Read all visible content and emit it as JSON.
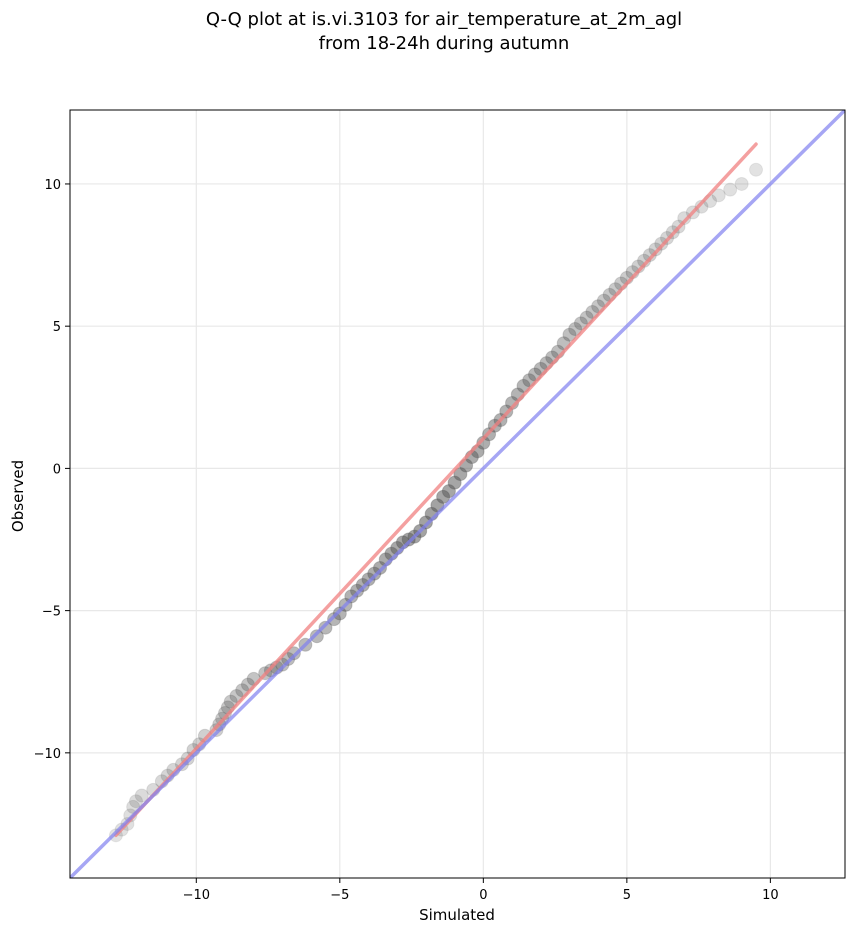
{
  "chart_data": {
    "type": "scatter",
    "title_lines": [
      "Q-Q plot at is.vi.3103 for air_temperature_at_2m_agl",
      "from 18-24h during autumn"
    ],
    "xlabel": "Simulated",
    "ylabel": "Observed",
    "xlim": [
      -14.4,
      12.6
    ],
    "ylim": [
      -14.4,
      12.6
    ],
    "xticks": [
      -10,
      -5,
      0,
      5,
      10
    ],
    "yticks": [
      -10,
      -5,
      0,
      5,
      10
    ],
    "xtick_labels": [
      "−10",
      "−5",
      "0",
      "5",
      "10"
    ],
    "ytick_labels": [
      "−10",
      "−5",
      "0",
      "5",
      "10"
    ],
    "grid": true,
    "colors": {
      "points": "#555555",
      "fit_line": "#f08080",
      "identity_line": "#8080f0"
    },
    "identity_line": {
      "x": [
        -14.4,
        12.6
      ],
      "y": [
        -14.4,
        12.6
      ]
    },
    "fit_line": {
      "x": [
        -12.8,
        9.5
      ],
      "y": [
        -12.9,
        11.4
      ]
    },
    "quantiles": {
      "x": [
        -12.8,
        -12.6,
        -12.4,
        -12.3,
        -12.2,
        -12.1,
        -11.9,
        -11.5,
        -11.2,
        -11.0,
        -10.8,
        -10.5,
        -10.3,
        -10.1,
        -9.9,
        -9.7,
        -9.3,
        -9.2,
        -9.1,
        -9.0,
        -8.9,
        -8.8,
        -8.6,
        -8.4,
        -8.2,
        -8.0,
        -7.6,
        -7.4,
        -7.2,
        -7.0,
        -6.8,
        -6.6,
        -6.2,
        -5.8,
        -5.5,
        -5.2,
        -5.0,
        -4.8,
        -4.6,
        -4.4,
        -4.2,
        -4.0,
        -3.8,
        -3.6,
        -3.4,
        -3.2,
        -3.0,
        -2.8,
        -2.6,
        -2.4,
        -2.2,
        -2.0,
        -1.8,
        -1.6,
        -1.4,
        -1.2,
        -1.0,
        -0.8,
        -0.6,
        -0.4,
        -0.2,
        0.0,
        0.2,
        0.4,
        0.6,
        0.8,
        1.0,
        1.2,
        1.4,
        1.6,
        1.8,
        2.0,
        2.2,
        2.4,
        2.6,
        2.8,
        3.0,
        3.2,
        3.4,
        3.6,
        3.8,
        4.0,
        4.2,
        4.4,
        4.6,
        4.8,
        5.0,
        5.2,
        5.4,
        5.6,
        5.8,
        6.0,
        6.2,
        6.4,
        6.6,
        6.8,
        7.0,
        7.3,
        7.6,
        7.9,
        8.2,
        8.6,
        9.0,
        9.5
      ],
      "y": [
        -12.9,
        -12.7,
        -12.5,
        -12.2,
        -11.9,
        -11.7,
        -11.5,
        -11.3,
        -11.0,
        -10.8,
        -10.6,
        -10.4,
        -10.2,
        -9.9,
        -9.7,
        -9.4,
        -9.2,
        -9.0,
        -8.8,
        -8.6,
        -8.4,
        -8.2,
        -8.0,
        -7.8,
        -7.6,
        -7.4,
        -7.2,
        -7.1,
        -7.0,
        -6.9,
        -6.7,
        -6.5,
        -6.2,
        -5.9,
        -5.6,
        -5.3,
        -5.1,
        -4.8,
        -4.5,
        -4.3,
        -4.1,
        -3.9,
        -3.7,
        -3.5,
        -3.2,
        -3.0,
        -2.8,
        -2.6,
        -2.5,
        -2.4,
        -2.2,
        -1.9,
        -1.6,
        -1.3,
        -1.0,
        -0.8,
        -0.5,
        -0.2,
        0.1,
        0.4,
        0.6,
        0.9,
        1.2,
        1.5,
        1.7,
        2.0,
        2.3,
        2.6,
        2.9,
        3.1,
        3.3,
        3.5,
        3.7,
        3.9,
        4.1,
        4.4,
        4.7,
        4.9,
        5.1,
        5.3,
        5.5,
        5.7,
        5.9,
        6.1,
        6.3,
        6.5,
        6.7,
        6.9,
        7.1,
        7.3,
        7.5,
        7.7,
        7.9,
        8.1,
        8.3,
        8.5,
        8.8,
        9.0,
        9.2,
        9.4,
        9.6,
        9.8,
        10.0,
        10.5
      ]
    }
  }
}
